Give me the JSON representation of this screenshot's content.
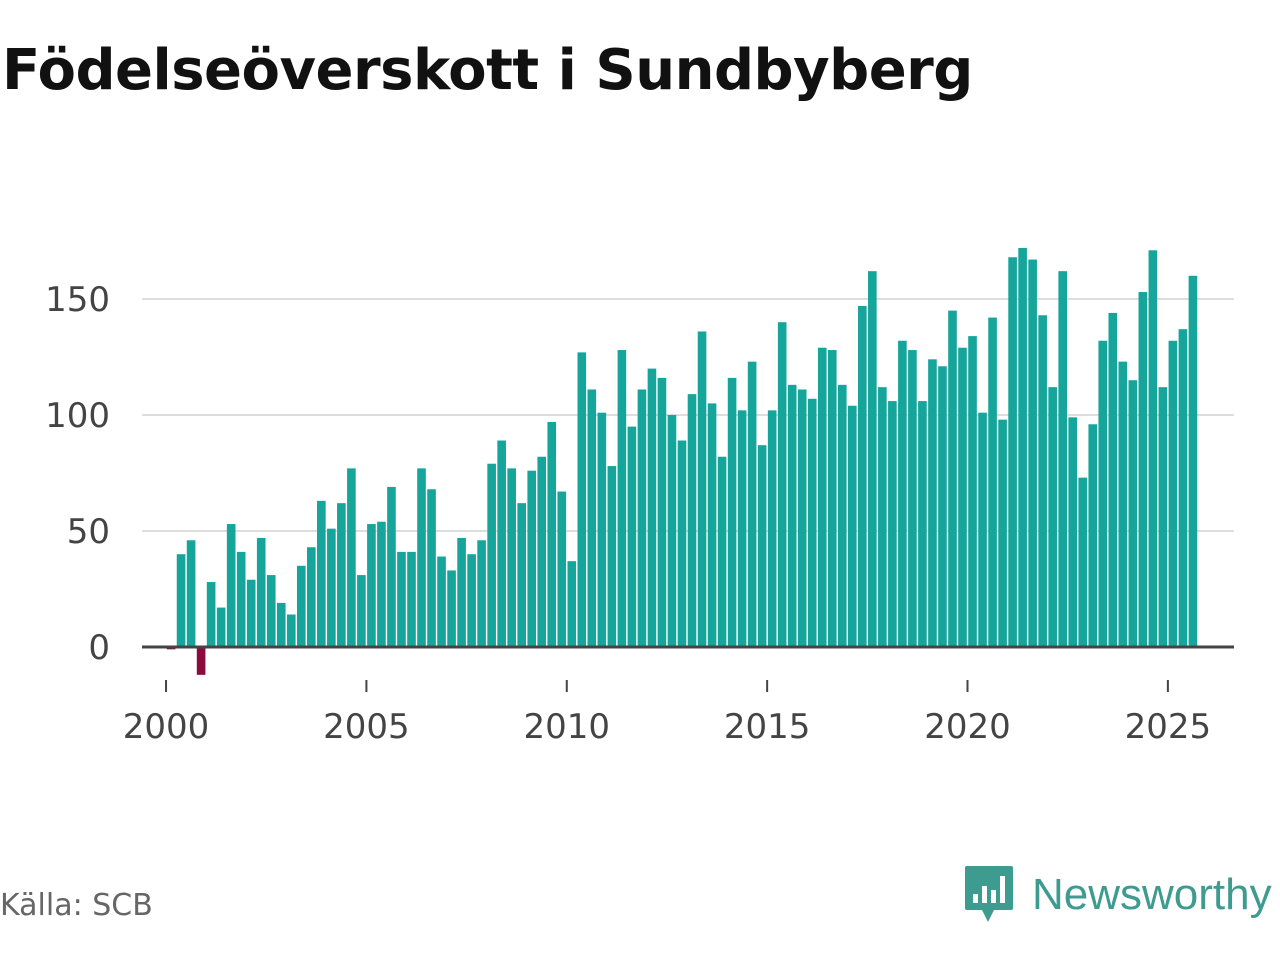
{
  "chart_data": {
    "type": "bar",
    "title": "Födelseöverskott i Sundbyberg",
    "xlabel": "",
    "ylabel": "",
    "ylim": [
      -15,
      190
    ],
    "xlim": [
      1999.4,
      2026.65
    ],
    "y_ticks": [
      0,
      50,
      100,
      150
    ],
    "x_ticks": [
      2000,
      2005,
      2010,
      2015,
      2020,
      2025
    ],
    "grid": true,
    "positive_color": "#16a59a",
    "negative_color": "#8c0b3c",
    "series": [
      {
        "name": "Födelseöverskott",
        "start_year": 2000,
        "start_quarter": 1,
        "period": "quarter",
        "values": [
          -1,
          40,
          46,
          -12,
          28,
          17,
          53,
          41,
          29,
          47,
          31,
          19,
          14,
          35,
          43,
          63,
          51,
          62,
          77,
          31,
          53,
          54,
          69,
          41,
          41,
          77,
          68,
          39,
          33,
          47,
          40,
          46,
          79,
          89,
          77,
          62,
          76,
          82,
          97,
          67,
          37,
          127,
          111,
          101,
          78,
          128,
          95,
          111,
          120,
          116,
          100,
          89,
          109,
          136,
          105,
          82,
          116,
          102,
          123,
          87,
          102,
          140,
          113,
          111,
          107,
          129,
          128,
          113,
          104,
          147,
          162,
          112,
          106,
          132,
          128,
          106,
          124,
          121,
          145,
          129,
          134,
          101,
          142,
          98,
          168,
          172,
          167,
          143,
          112,
          162,
          99,
          73,
          96,
          132,
          144,
          123,
          115,
          153,
          171,
          112,
          132,
          137,
          160
        ]
      }
    ]
  },
  "source": "Källa: SCB",
  "brand": "Newsworthy",
  "logo_icon": "newsworthy-logo-icon",
  "brand_color": "#3d9b8f"
}
